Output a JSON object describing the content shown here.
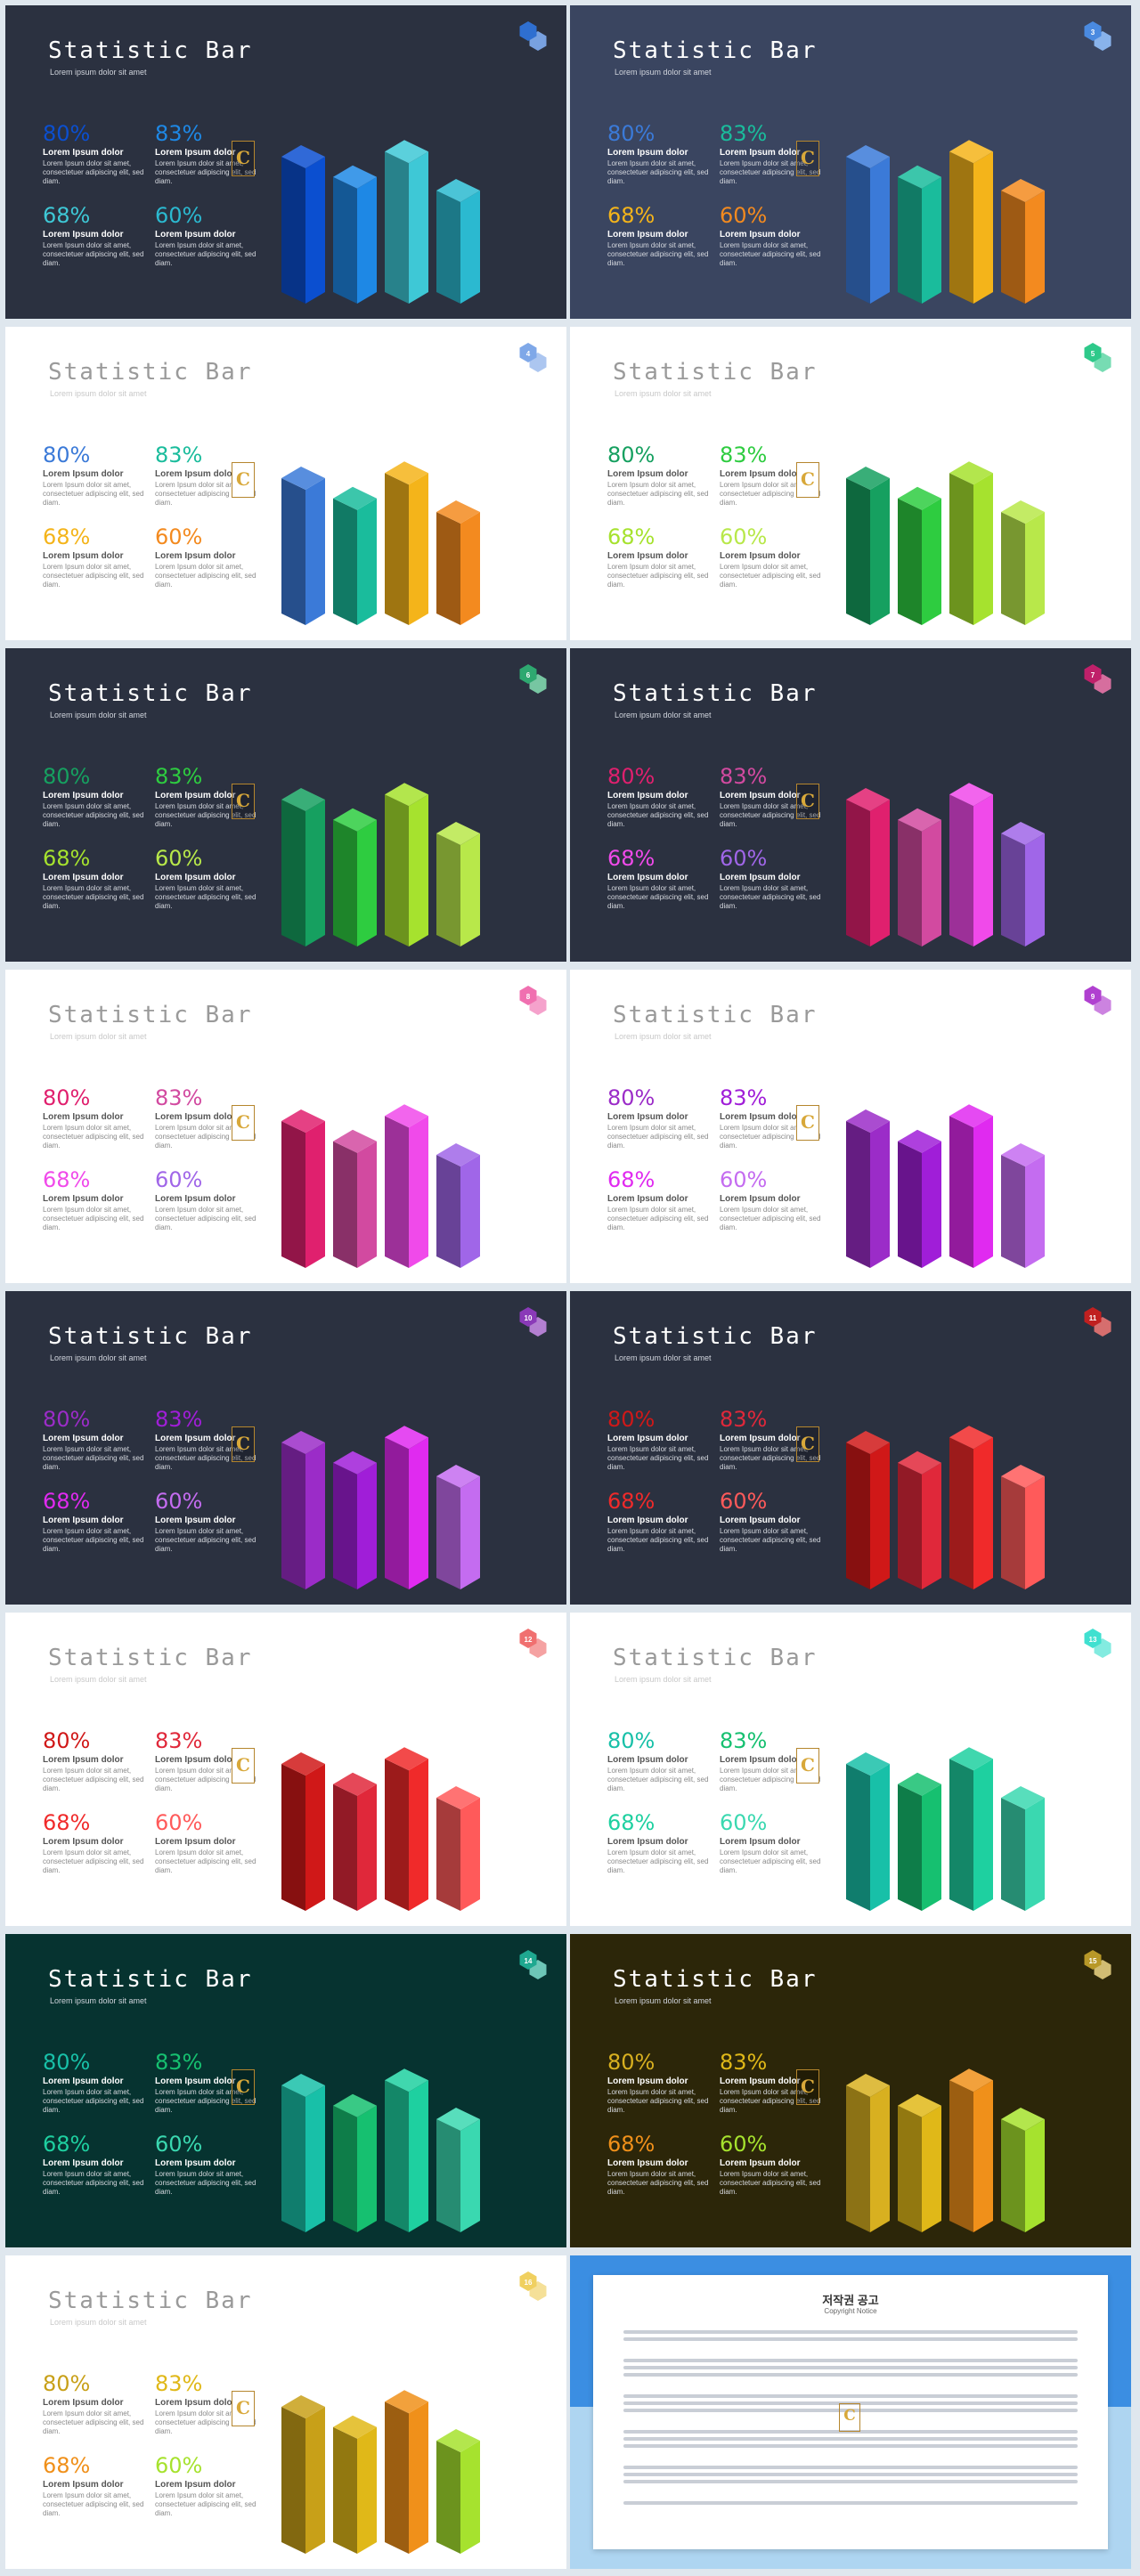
{
  "slide_text": {
    "title": "Statistic Bar",
    "subtitle": "Lorem ipsum dolor sit amet",
    "logo_letter": "C"
  },
  "stats": [
    {
      "value": "80%",
      "heading": "Lorem Ipsum dolor",
      "body": "Lorem Ipsum dolor sit amet, consectetuer adipiscing elit, sed diam."
    },
    {
      "value": "83%",
      "heading": "Lorem Ipsum dolor",
      "body": "Lorem Ipsum dolor sit amet, consectetuer adipiscing elit, sed diam."
    },
    {
      "value": "68%",
      "heading": "Lorem Ipsum dolor",
      "body": "Lorem Ipsum dolor sit amet, consectetuer adipiscing elit, sed diam."
    },
    {
      "value": "60%",
      "heading": "Lorem Ipsum dolor",
      "body": "Lorem Ipsum dolor sit amet, consectetuer adipiscing elit, sed diam."
    }
  ],
  "chart_data": {
    "type": "bar",
    "values": [
      80,
      68,
      83,
      60
    ],
    "style": "isometric 3D bars"
  },
  "slides": [
    {
      "number": "",
      "theme": "dark",
      "colors": [
        "#0b4fd0",
        "#1e88e5",
        "#3ec8d6",
        "#2bb9d0"
      ],
      "badge": "#2f6fd0"
    },
    {
      "number": "3",
      "theme": "navy",
      "colors": [
        "#3b7ad8",
        "#1abc9c",
        "#f4b41a",
        "#f38a1f"
      ],
      "badge": "#4a8ae0"
    },
    {
      "number": "4",
      "theme": "light",
      "colors": [
        "#3b7ad8",
        "#1abc9c",
        "#f4b41a",
        "#f38a1f"
      ],
      "badge": "#7fa8e8"
    },
    {
      "number": "5",
      "theme": "light",
      "colors": [
        "#16a060",
        "#2ecc40",
        "#a6e22e",
        "#b8e84a"
      ],
      "badge": "#2ec98a"
    },
    {
      "number": "6",
      "theme": "dark",
      "colors": [
        "#16a060",
        "#2ecc40",
        "#a6e22e",
        "#b8e84a"
      ],
      "badge": "#2ea870"
    },
    {
      "number": "7",
      "theme": "dark",
      "colors": [
        "#e0206e",
        "#d24aa0",
        "#f04aea",
        "#a066e8"
      ],
      "badge": "#c0206a"
    },
    {
      "number": "8",
      "theme": "light",
      "colors": [
        "#e0206e",
        "#d24aa0",
        "#f04aea",
        "#a066e8"
      ],
      "badge": "#f070b0"
    },
    {
      "number": "9",
      "theme": "light",
      "colors": [
        "#9b2cc8",
        "#a01ed8",
        "#e02af0",
        "#c46cf0"
      ],
      "badge": "#b040d0"
    },
    {
      "number": "10",
      "theme": "dark",
      "colors": [
        "#9b2cc8",
        "#a01ed8",
        "#e02af0",
        "#c46cf0"
      ],
      "badge": "#8a3ab8"
    },
    {
      "number": "11",
      "theme": "dark",
      "colors": [
        "#d01818",
        "#e0283a",
        "#f02a2a",
        "#ff5a5a"
      ],
      "badge": "#c02020"
    },
    {
      "number": "12",
      "theme": "light",
      "colors": [
        "#d01818",
        "#e0283a",
        "#f02a2a",
        "#ff5a5a"
      ],
      "badge": "#f07070"
    },
    {
      "number": "13",
      "theme": "light",
      "colors": [
        "#18c0a8",
        "#16c070",
        "#1ed0a0",
        "#3ad8b0"
      ],
      "badge": "#40e0d0"
    },
    {
      "number": "14",
      "theme": "teal",
      "colors": [
        "#18c0a8",
        "#16c070",
        "#1ed0a0",
        "#3ad8b0"
      ],
      "badge": "#1fa890"
    },
    {
      "number": "15",
      "theme": "olive",
      "colors": [
        "#d8b020",
        "#e0b818",
        "#f0901a",
        "#a6e22e"
      ],
      "badge": "#b89828"
    },
    {
      "number": "16",
      "theme": "light",
      "colors": [
        "#c8a018",
        "#e0b818",
        "#f0901a",
        "#a6e22e"
      ],
      "badge": "#f0d060"
    }
  ],
  "notice": {
    "title": "저작권 공고",
    "subtitle": "Copyright Notice"
  }
}
